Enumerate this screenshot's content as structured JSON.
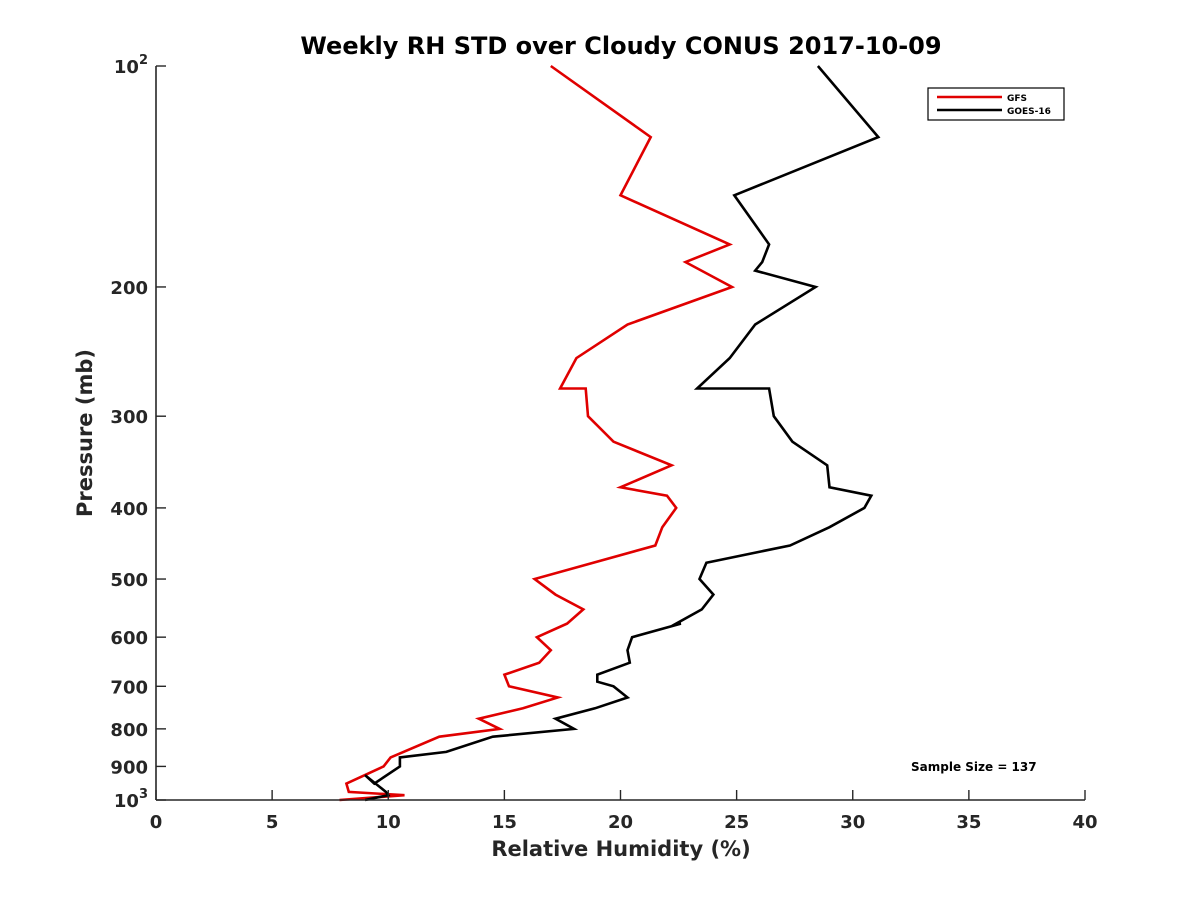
{
  "chart_data": {
    "type": "line",
    "title": "Weekly RH STD over Cloudy CONUS 2017-10-09",
    "xlabel": "Relative Humidity (%)",
    "ylabel": "Pressure (mb)",
    "xlim": [
      0,
      40
    ],
    "ylim": [
      100,
      1000
    ],
    "y_scale": "log",
    "y_reversed": true,
    "grid": false,
    "legend_position": "top-right",
    "x_ticks": [
      "0",
      "5",
      "10",
      "15",
      "20",
      "25",
      "30",
      "35",
      "40"
    ],
    "y_ticks": [
      {
        "value": 100,
        "base": "10",
        "exp": "2"
      },
      {
        "value": 200,
        "label": "200"
      },
      {
        "value": 300,
        "label": "300"
      },
      {
        "value": 400,
        "label": "400"
      },
      {
        "value": 500,
        "label": "500"
      },
      {
        "value": 600,
        "label": "600"
      },
      {
        "value": 700,
        "label": "700"
      },
      {
        "value": 800,
        "label": "800"
      },
      {
        "value": 900,
        "label": "900"
      },
      {
        "value": 1000,
        "base": "10",
        "exp": "3"
      }
    ],
    "annotation": "Sample Size = 137",
    "series": [
      {
        "name": "GFS",
        "color": "#e00000",
        "points": [
          [
            17.0,
            100
          ],
          [
            21.3,
            125
          ],
          [
            20.0,
            150
          ],
          [
            24.7,
            175
          ],
          [
            22.8,
            185
          ],
          [
            24.8,
            200
          ],
          [
            20.3,
            225
          ],
          [
            18.1,
            250
          ],
          [
            17.4,
            275
          ],
          [
            18.5,
            275
          ],
          [
            18.6,
            300
          ],
          [
            19.7,
            325
          ],
          [
            22.2,
            350
          ],
          [
            20.0,
            375
          ],
          [
            22.0,
            385
          ],
          [
            22.4,
            400
          ],
          [
            21.8,
            425
          ],
          [
            21.5,
            450
          ],
          [
            16.3,
            500
          ],
          [
            17.2,
            525
          ],
          [
            18.4,
            550
          ],
          [
            17.7,
            575
          ],
          [
            16.4,
            600
          ],
          [
            17.0,
            625
          ],
          [
            16.5,
            650
          ],
          [
            15.0,
            675
          ],
          [
            15.2,
            700
          ],
          [
            17.3,
            725
          ],
          [
            15.8,
            750
          ],
          [
            13.9,
            775
          ],
          [
            14.8,
            800
          ],
          [
            12.2,
            820
          ],
          [
            10.1,
            875
          ],
          [
            9.8,
            900
          ],
          [
            8.2,
            950
          ],
          [
            8.3,
            975
          ],
          [
            10.7,
            985
          ],
          [
            7.9,
            1000
          ]
        ]
      },
      {
        "name": "GOES-16",
        "color": "#000000",
        "points": [
          [
            28.5,
            100
          ],
          [
            31.1,
            125
          ],
          [
            24.9,
            150
          ],
          [
            26.4,
            175
          ],
          [
            26.1,
            185
          ],
          [
            25.8,
            190
          ],
          [
            28.4,
            200
          ],
          [
            25.8,
            225
          ],
          [
            24.7,
            250
          ],
          [
            23.3,
            275
          ],
          [
            26.4,
            275
          ],
          [
            26.6,
            300
          ],
          [
            27.4,
            325
          ],
          [
            28.9,
            350
          ],
          [
            29.0,
            375
          ],
          [
            30.8,
            385
          ],
          [
            30.5,
            400
          ],
          [
            29.0,
            425
          ],
          [
            27.3,
            450
          ],
          [
            23.7,
            475
          ],
          [
            23.4,
            500
          ],
          [
            24.0,
            525
          ],
          [
            23.5,
            550
          ],
          [
            22.4,
            575
          ],
          [
            22.6,
            575
          ],
          [
            20.5,
            600
          ],
          [
            20.3,
            625
          ],
          [
            20.4,
            650
          ],
          [
            19.0,
            675
          ],
          [
            19.0,
            690
          ],
          [
            19.7,
            700
          ],
          [
            20.3,
            725
          ],
          [
            18.9,
            750
          ],
          [
            17.2,
            775
          ],
          [
            18.0,
            800
          ],
          [
            14.5,
            820
          ],
          [
            12.5,
            860
          ],
          [
            10.5,
            875
          ],
          [
            10.5,
            900
          ],
          [
            9.4,
            950
          ],
          [
            9.0,
            925
          ],
          [
            9.9,
            975
          ],
          [
            10.0,
            985
          ],
          [
            9.0,
            1000
          ]
        ]
      }
    ]
  }
}
